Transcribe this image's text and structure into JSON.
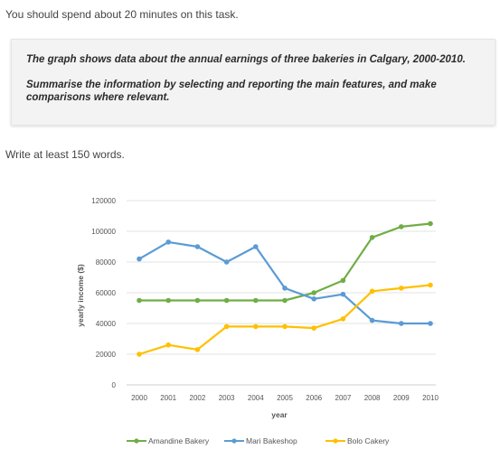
{
  "intro": "You should spend about 20 minutes on this task.",
  "task": {
    "line1": "The graph shows data about the annual earnings of three bakeries in Calgary, 2000-2010.",
    "line2": "Summarise the information by selecting and reporting the main features, and make comparisons where relevant."
  },
  "word_instruction": "Write at least 150 words.",
  "chart_data": {
    "type": "line",
    "xlabel": "year",
    "ylabel": "yearly income ($)",
    "x": [
      "2000",
      "2001",
      "2002",
      "2003",
      "2004",
      "2005",
      "2006",
      "2007",
      "2008",
      "2009",
      "2010"
    ],
    "ylim": [
      0,
      120000
    ],
    "yticks": [
      "0",
      "20000",
      "40000",
      "60000",
      "80000",
      "100000",
      "120000"
    ],
    "grid": true,
    "legend_position": "bottom",
    "series": [
      {
        "name": "Amandine Bakery",
        "color": "#70ad47",
        "values": [
          55000,
          55000,
          55000,
          55000,
          55000,
          55000,
          60000,
          68000,
          96000,
          103000,
          105000
        ]
      },
      {
        "name": "Mari Bakeshop",
        "color": "#5b9bd5",
        "values": [
          82000,
          93000,
          90000,
          80000,
          90000,
          63000,
          56000,
          59000,
          42000,
          40000,
          40000
        ]
      },
      {
        "name": "Bolo Cakery",
        "color": "#ffc000",
        "values": [
          20000,
          26000,
          23000,
          38000,
          38000,
          38000,
          37000,
          43000,
          61000,
          63000,
          65000
        ]
      }
    ]
  }
}
